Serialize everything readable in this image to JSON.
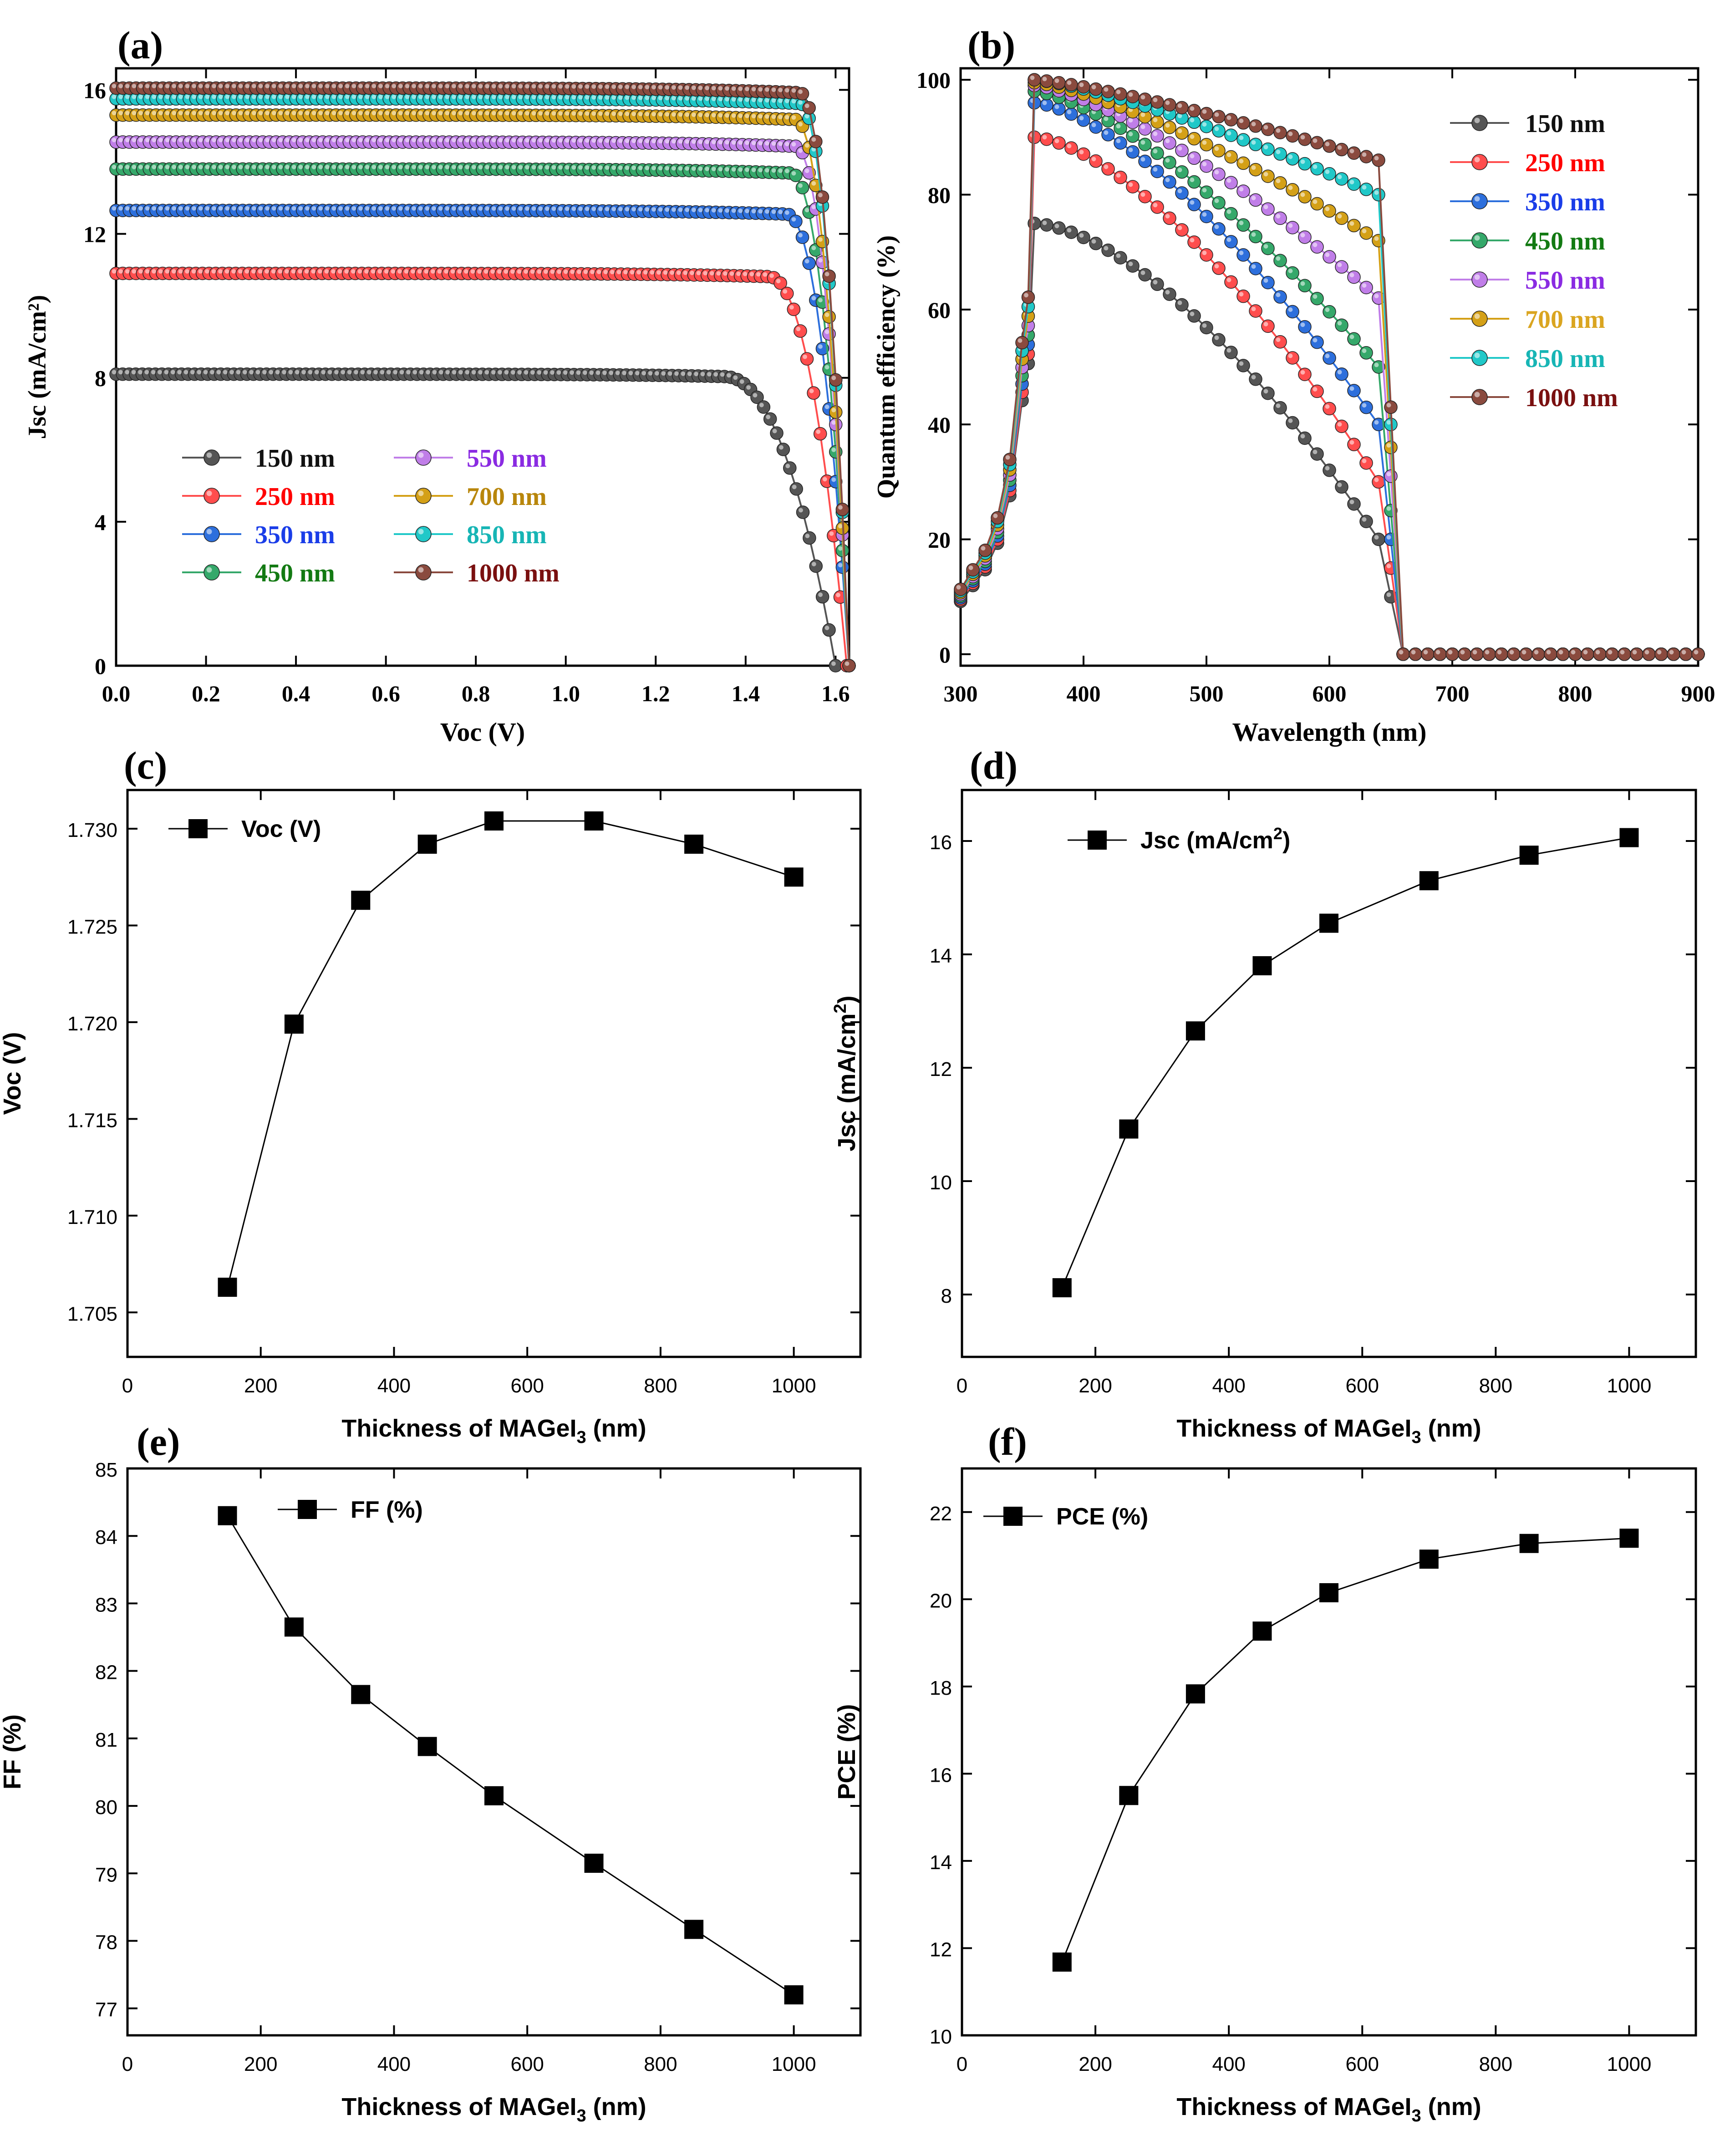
{
  "chart_data": [
    {
      "panel": "(a)",
      "type": "scatter-line",
      "title": "",
      "xlabel": "Voc (V)",
      "ylabel": "Jsc (mA/cm²)",
      "xlim": [
        0.0,
        1.63
      ],
      "ylim": [
        0,
        16.6
      ],
      "xticks": [
        0.0,
        0.2,
        0.4,
        0.6,
        0.8,
        1.0,
        1.2,
        1.4,
        1.6
      ],
      "yticks": [
        0,
        4,
        8,
        12,
        16
      ],
      "legend": "bottom-left, two columns",
      "series": [
        {
          "name": "150 nm",
          "jsc": 8.1,
          "voc": 1.6,
          "knee": 1.35,
          "color": "#555555",
          "label_color": "#111111"
        },
        {
          "name": "250 nm",
          "jsc": 10.9,
          "voc": 1.625,
          "knee": 1.45,
          "color": "#ff4d4d",
          "label_color": "#ff0000"
        },
        {
          "name": "350 nm",
          "jsc": 12.65,
          "voc": 1.63,
          "knee": 1.49,
          "color": "#2d6fdc",
          "label_color": "#1a3de8"
        },
        {
          "name": "450 nm",
          "jsc": 13.8,
          "voc": 1.63,
          "knee": 1.5,
          "color": "#35a86a",
          "label_color": "#137a13"
        },
        {
          "name": "550 nm",
          "jsc": 14.55,
          "voc": 1.63,
          "knee": 1.51,
          "color": "#c07ee8",
          "label_color": "#8a2be2"
        },
        {
          "name": "700 nm",
          "jsc": 15.3,
          "voc": 1.63,
          "knee": 1.51,
          "color": "#d4a017",
          "label_color": "#b8860b"
        },
        {
          "name": "850 nm",
          "jsc": 15.75,
          "voc": 1.63,
          "knee": 1.52,
          "color": "#20c8c8",
          "label_color": "#17b5b5"
        },
        {
          "name": "1000 nm",
          "jsc": 16.05,
          "voc": 1.63,
          "knee": 1.52,
          "color": "#8a4a3e",
          "label_color": "#7a1010"
        }
      ]
    },
    {
      "panel": "(b)",
      "type": "scatter-line",
      "title": "",
      "xlabel": "Wavelength (nm)",
      "ylabel": "Quantum efficiency (%)",
      "xlim": [
        300,
        900
      ],
      "ylim": [
        -2,
        102
      ],
      "xticks": [
        300,
        400,
        500,
        600,
        700,
        800,
        900
      ],
      "yticks": [
        0,
        20,
        40,
        60,
        80,
        100
      ],
      "legend": "top-right",
      "rise": {
        "x": [
          300,
          310,
          320,
          330,
          340,
          350,
          355
        ],
        "y": [
          10,
          13,
          16,
          21,
          30,
          48,
          55
        ]
      },
      "series": [
        {
          "name": "150 nm",
          "peak": 75,
          "edge_value": 20,
          "color": "#555555",
          "label_color": "#111111"
        },
        {
          "name": "250 nm",
          "peak": 90,
          "edge_value": 30,
          "color": "#ff4d4d",
          "label_color": "#ff0000"
        },
        {
          "name": "350 nm",
          "peak": 96,
          "edge_value": 40,
          "color": "#2d6fdc",
          "label_color": "#1a3de8"
        },
        {
          "name": "450 nm",
          "peak": 98,
          "edge_value": 50,
          "color": "#35a86a",
          "label_color": "#137a13"
        },
        {
          "name": "550 nm",
          "peak": 99,
          "edge_value": 62,
          "color": "#c07ee8",
          "label_color": "#8a2be2"
        },
        {
          "name": "700 nm",
          "peak": 99.5,
          "edge_value": 72,
          "color": "#d4a017",
          "label_color": "#daa520"
        },
        {
          "name": "850 nm",
          "peak": 100,
          "edge_value": 80,
          "color": "#20c8c8",
          "label_color": "#17b5b5"
        },
        {
          "name": "1000 nm",
          "peak": 100,
          "edge_value": 86,
          "color": "#8a4a3e",
          "label_color": "#7a1010"
        }
      ]
    },
    {
      "panel": "(c)",
      "type": "line",
      "xlabel": "Thickness of MAGeI",
      "xlabel_sub": "3",
      "xlabel_tail": " (nm)",
      "ylabel": "Voc (V)",
      "legend_label": "Voc (V)",
      "legend_sup": "",
      "legend_tail": "",
      "x": [
        150,
        250,
        350,
        450,
        550,
        700,
        850,
        1000
      ],
      "y": [
        1.7063,
        1.7199,
        1.7263,
        1.7292,
        1.7304,
        1.7304,
        1.7292,
        1.7275
      ],
      "xlim": [
        0,
        1100
      ],
      "ylim": [
        1.7027,
        1.732
      ],
      "xticks": [
        0,
        200,
        400,
        600,
        800,
        1000
      ],
      "yticks": [
        1.705,
        1.71,
        1.715,
        1.72,
        1.725,
        1.73
      ],
      "ydecimals": 3
    },
    {
      "panel": "(d)",
      "type": "line",
      "xlabel": "Thickness of MAGeI",
      "xlabel_sub": "3",
      "xlabel_tail": " (nm)",
      "ylabel": "Jsc (mA/cm",
      "ylabel_sup": "2",
      "ylabel_tail": ")",
      "legend_label": "Jsc (mA/cm",
      "legend_sup": "2",
      "legend_tail": ")",
      "x": [
        150,
        250,
        350,
        450,
        550,
        700,
        850,
        1000
      ],
      "y": [
        8.12,
        10.92,
        12.65,
        13.8,
        14.55,
        15.3,
        15.75,
        16.06
      ],
      "xlim": [
        0,
        1100
      ],
      "ylim": [
        6.9,
        16.9
      ],
      "xticks": [
        0,
        200,
        400,
        600,
        800,
        1000
      ],
      "yticks": [
        8,
        10,
        12,
        14,
        16
      ],
      "ydecimals": 0
    },
    {
      "panel": "(e)",
      "type": "line",
      "xlabel": "Thickness of MAGeI",
      "xlabel_sub": "3",
      "xlabel_tail": " (nm)",
      "ylabel": "FF (%)",
      "legend_label": "FF (%)",
      "legend_sup": "",
      "legend_tail": "",
      "x": [
        150,
        250,
        350,
        450,
        550,
        700,
        850,
        1000
      ],
      "y": [
        84.3,
        82.65,
        81.65,
        80.88,
        80.15,
        79.15,
        78.17,
        77.2
      ],
      "xlim": [
        0,
        1100
      ],
      "ylim": [
        76.6,
        85.0
      ],
      "xticks": [
        0,
        200,
        400,
        600,
        800,
        1000
      ],
      "yticks": [
        77,
        78,
        79,
        80,
        81,
        82,
        83,
        84,
        85
      ],
      "ydecimals": 0
    },
    {
      "panel": "(f)",
      "type": "line",
      "xlabel": "Thickness of MAGeI",
      "xlabel_sub": "3",
      "xlabel_tail": " (nm)",
      "ylabel": "PCE (%)",
      "legend_label": "PCE (%)",
      "legend_sup": "",
      "legend_tail": "",
      "x": [
        150,
        250,
        350,
        450,
        550,
        700,
        850,
        1000
      ],
      "y": [
        11.68,
        15.5,
        17.83,
        19.27,
        20.15,
        20.92,
        21.28,
        21.4
      ],
      "xlim": [
        0,
        1100
      ],
      "ylim": [
        10,
        23
      ],
      "xticks": [
        0,
        200,
        400,
        600,
        800,
        1000
      ],
      "yticks": [
        10,
        12,
        14,
        16,
        18,
        20,
        22
      ],
      "ydecimals": 0
    }
  ]
}
